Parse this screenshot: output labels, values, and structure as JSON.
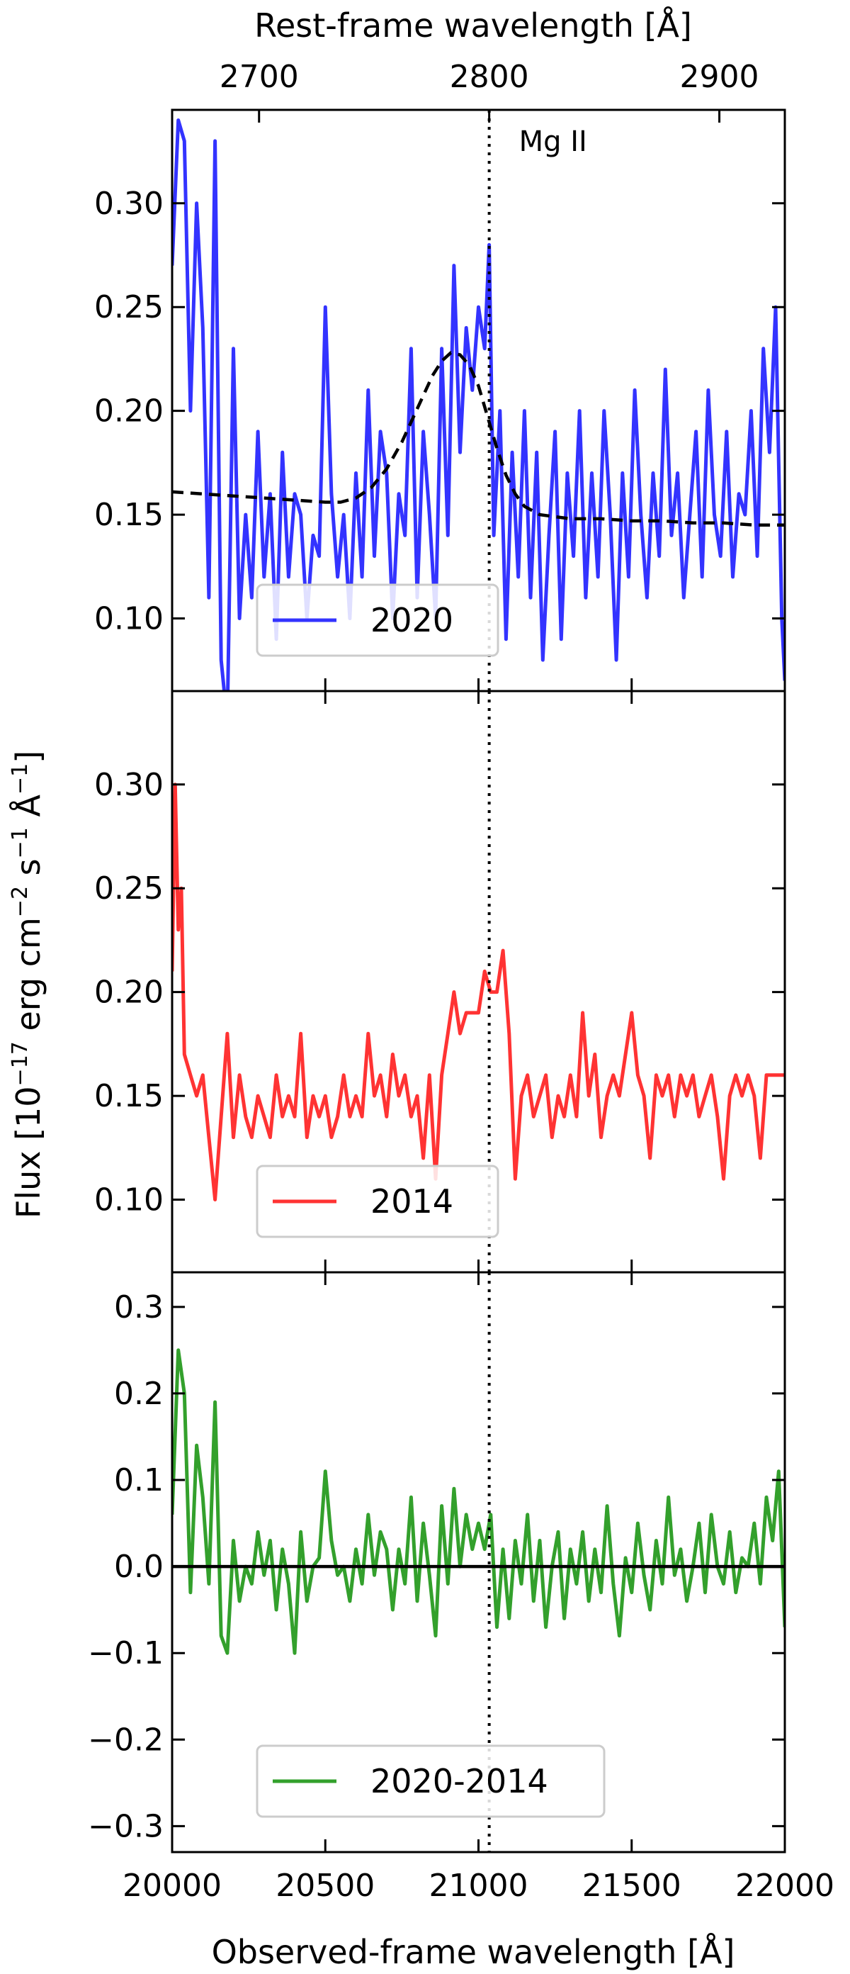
{
  "figure": {
    "top_xlabel": "Rest-frame wavelength [Å]",
    "bottom_xlabel": "Observed-frame wavelength [Å]",
    "shared_ylabel": "Flux [10^-17 erg cm^-2 s^-1 Å^-1]",
    "ylabel_parts": {
      "base": "Flux [10",
      "exp1": "−17",
      "mid1": " erg cm",
      "exp2": "−2",
      "mid2": " s",
      "exp3": "−1",
      "mid3": " Å",
      "exp4": "−1",
      "end": "]"
    },
    "annotation": "Mg II",
    "annotation_x_observed": 21035,
    "rest_ticks": [
      2700,
      2800,
      2900
    ],
    "colors": {
      "blue": "#3333ff",
      "red": "#ff3333",
      "green": "#33a02c",
      "fit": "#000000"
    }
  },
  "chart_data": [
    {
      "type": "line",
      "panel": "top",
      "xlim": [
        20000,
        22000
      ],
      "ylim": [
        0.065,
        0.345
      ],
      "yticks": [
        0.1,
        0.15,
        0.2,
        0.25,
        0.3
      ],
      "ytick_labels": [
        "0.10",
        "0.15",
        "0.20",
        "0.25",
        "0.30"
      ],
      "series": [
        {
          "name": "2020",
          "color": "#3333ff",
          "legend": true,
          "x": [
            20000,
            20020,
            20040,
            20060,
            20080,
            20100,
            20120,
            20140,
            20160,
            20180,
            20200,
            20220,
            20240,
            20260,
            20280,
            20300,
            20320,
            20340,
            20360,
            20380,
            20400,
            20420,
            20440,
            20460,
            20480,
            20500,
            20520,
            20540,
            20560,
            20580,
            20600,
            20620,
            20640,
            20660,
            20680,
            20700,
            20720,
            20740,
            20760,
            20780,
            20800,
            20820,
            20840,
            20860,
            20880,
            20900,
            20920,
            20940,
            20960,
            20980,
            21000,
            21020,
            21035,
            21050,
            21070,
            21090,
            21110,
            21130,
            21150,
            21170,
            21190,
            21210,
            21230,
            21250,
            21270,
            21290,
            21310,
            21330,
            21350,
            21370,
            21390,
            21410,
            21430,
            21450,
            21470,
            21490,
            21510,
            21530,
            21550,
            21570,
            21590,
            21610,
            21630,
            21650,
            21670,
            21690,
            21710,
            21730,
            21750,
            21770,
            21790,
            21810,
            21830,
            21850,
            21870,
            21890,
            21910,
            21930,
            21950,
            21970,
            21990,
            22000
          ],
          "y": [
            0.27,
            0.34,
            0.33,
            0.2,
            0.3,
            0.24,
            0.11,
            0.33,
            0.08,
            0.05,
            0.23,
            0.1,
            0.15,
            0.11,
            0.19,
            0.12,
            0.16,
            0.09,
            0.18,
            0.12,
            0.16,
            0.15,
            0.1,
            0.14,
            0.13,
            0.25,
            0.16,
            0.12,
            0.15,
            0.1,
            0.17,
            0.12,
            0.21,
            0.13,
            0.19,
            0.17,
            0.1,
            0.16,
            0.14,
            0.23,
            0.11,
            0.19,
            0.15,
            0.1,
            0.23,
            0.14,
            0.27,
            0.18,
            0.24,
            0.21,
            0.25,
            0.23,
            0.28,
            0.14,
            0.2,
            0.09,
            0.18,
            0.12,
            0.2,
            0.11,
            0.18,
            0.08,
            0.14,
            0.19,
            0.09,
            0.17,
            0.13,
            0.2,
            0.11,
            0.17,
            0.12,
            0.2,
            0.15,
            0.08,
            0.17,
            0.12,
            0.21,
            0.15,
            0.11,
            0.17,
            0.13,
            0.22,
            0.14,
            0.17,
            0.11,
            0.15,
            0.19,
            0.12,
            0.21,
            0.15,
            0.13,
            0.19,
            0.12,
            0.16,
            0.15,
            0.2,
            0.13,
            0.23,
            0.18,
            0.25,
            0.1,
            0.07
          ]
        },
        {
          "name": "",
          "color": "#000000",
          "style": "dashed",
          "legend": false,
          "x": [
            20000,
            20100,
            20200,
            20300,
            20400,
            20500,
            20550,
            20600,
            20650,
            20700,
            20750,
            20800,
            20850,
            20880,
            20910,
            20940,
            20970,
            21000,
            21030,
            21060,
            21090,
            21120,
            21150,
            21200,
            21250,
            21300,
            21400,
            21500,
            21600,
            21700,
            21800,
            21900,
            22000
          ],
          "y": [
            0.161,
            0.16,
            0.159,
            0.158,
            0.157,
            0.156,
            0.156,
            0.158,
            0.163,
            0.172,
            0.185,
            0.201,
            0.217,
            0.224,
            0.228,
            0.227,
            0.222,
            0.212,
            0.197,
            0.182,
            0.169,
            0.16,
            0.154,
            0.15,
            0.149,
            0.148,
            0.148,
            0.147,
            0.147,
            0.146,
            0.146,
            0.145,
            0.145
          ]
        }
      ]
    },
    {
      "type": "line",
      "panel": "middle",
      "xlim": [
        20000,
        22000
      ],
      "ylim": [
        0.065,
        0.345
      ],
      "yticks": [
        0.1,
        0.15,
        0.2,
        0.25,
        0.3
      ],
      "ytick_labels": [
        "0.10",
        "0.15",
        "0.20",
        "0.25",
        "0.30"
      ],
      "series": [
        {
          "name": "2014",
          "color": "#ff3333",
          "legend": true,
          "x": [
            20000,
            20010,
            20020,
            20030,
            20040,
            20060,
            20080,
            20100,
            20120,
            20140,
            20160,
            20180,
            20200,
            20220,
            20240,
            20260,
            20280,
            20300,
            20320,
            20340,
            20360,
            20380,
            20400,
            20420,
            20440,
            20460,
            20480,
            20500,
            20520,
            20540,
            20560,
            20580,
            20600,
            20620,
            20640,
            20660,
            20680,
            20700,
            20720,
            20740,
            20760,
            20780,
            20800,
            20820,
            20840,
            20860,
            20880,
            20900,
            20920,
            20940,
            20960,
            20980,
            21000,
            21020,
            21040,
            21060,
            21080,
            21100,
            21120,
            21140,
            21160,
            21180,
            21200,
            21220,
            21240,
            21260,
            21280,
            21300,
            21320,
            21340,
            21360,
            21380,
            21400,
            21420,
            21440,
            21460,
            21480,
            21500,
            21520,
            21540,
            21560,
            21580,
            21600,
            21620,
            21640,
            21660,
            21680,
            21700,
            21720,
            21740,
            21760,
            21780,
            21800,
            21820,
            21840,
            21860,
            21880,
            21900,
            21920,
            21940,
            21960,
            21980,
            22000
          ],
          "y": [
            0.21,
            0.3,
            0.23,
            0.25,
            0.17,
            0.16,
            0.15,
            0.16,
            0.13,
            0.1,
            0.14,
            0.18,
            0.13,
            0.16,
            0.14,
            0.13,
            0.15,
            0.14,
            0.13,
            0.16,
            0.14,
            0.15,
            0.14,
            0.18,
            0.13,
            0.15,
            0.14,
            0.15,
            0.13,
            0.14,
            0.16,
            0.14,
            0.15,
            0.14,
            0.18,
            0.15,
            0.16,
            0.14,
            0.17,
            0.15,
            0.16,
            0.14,
            0.15,
            0.12,
            0.16,
            0.11,
            0.16,
            0.18,
            0.2,
            0.18,
            0.19,
            0.19,
            0.19,
            0.21,
            0.2,
            0.2,
            0.22,
            0.18,
            0.11,
            0.15,
            0.16,
            0.14,
            0.15,
            0.16,
            0.13,
            0.15,
            0.14,
            0.16,
            0.14,
            0.19,
            0.15,
            0.17,
            0.13,
            0.15,
            0.16,
            0.15,
            0.17,
            0.19,
            0.16,
            0.15,
            0.12,
            0.16,
            0.15,
            0.16,
            0.14,
            0.16,
            0.15,
            0.16,
            0.14,
            0.15,
            0.16,
            0.14,
            0.11,
            0.15,
            0.16,
            0.15,
            0.16,
            0.15,
            0.12,
            0.16,
            0.16,
            0.16,
            0.16
          ]
        }
      ]
    },
    {
      "type": "line",
      "panel": "bottom",
      "xlim": [
        20000,
        22000
      ],
      "ylim": [
        -0.33,
        0.34
      ],
      "yticks": [
        -0.3,
        -0.2,
        -0.1,
        0.0,
        0.1,
        0.2,
        0.3
      ],
      "ytick_labels": [
        "−0.3",
        "−0.2",
        "−0.1",
        "0.0",
        "0.1",
        "0.2",
        "0.3"
      ],
      "series": [
        {
          "name": "2020-2014",
          "color": "#33a02c",
          "legend": true,
          "x": [
            20000,
            20020,
            20040,
            20060,
            20080,
            20100,
            20120,
            20140,
            20160,
            20180,
            20200,
            20220,
            20240,
            20260,
            20280,
            20300,
            20320,
            20340,
            20360,
            20380,
            20400,
            20420,
            20440,
            20460,
            20480,
            20500,
            20520,
            20540,
            20560,
            20580,
            20600,
            20620,
            20640,
            20660,
            20680,
            20700,
            20720,
            20740,
            20760,
            20780,
            20800,
            20820,
            20840,
            20860,
            20880,
            20900,
            20920,
            20940,
            20960,
            20980,
            21000,
            21020,
            21040,
            21060,
            21080,
            21100,
            21120,
            21140,
            21160,
            21180,
            21200,
            21220,
            21240,
            21260,
            21280,
            21300,
            21320,
            21340,
            21360,
            21380,
            21400,
            21420,
            21440,
            21460,
            21480,
            21500,
            21520,
            21540,
            21560,
            21580,
            21600,
            21620,
            21640,
            21660,
            21680,
            21700,
            21720,
            21740,
            21760,
            21780,
            21800,
            21820,
            21840,
            21860,
            21880,
            21900,
            21920,
            21940,
            21960,
            21980,
            22000
          ],
          "y": [
            0.06,
            0.25,
            0.2,
            -0.03,
            0.14,
            0.08,
            -0.02,
            0.19,
            -0.08,
            -0.1,
            0.03,
            -0.04,
            0.0,
            -0.02,
            0.04,
            -0.01,
            0.03,
            -0.05,
            0.02,
            -0.02,
            -0.1,
            0.04,
            -0.04,
            0.0,
            0.01,
            0.11,
            0.03,
            -0.01,
            0.0,
            -0.04,
            0.02,
            -0.02,
            0.06,
            -0.01,
            0.04,
            0.02,
            -0.05,
            0.02,
            -0.02,
            0.08,
            -0.04,
            0.05,
            -0.01,
            -0.08,
            0.07,
            -0.02,
            0.09,
            0.0,
            0.06,
            0.02,
            0.05,
            0.02,
            0.06,
            -0.07,
            0.02,
            -0.06,
            0.03,
            -0.02,
            0.06,
            -0.04,
            0.03,
            -0.07,
            0.0,
            0.04,
            -0.06,
            0.02,
            -0.02,
            0.04,
            -0.04,
            0.02,
            -0.03,
            0.07,
            -0.02,
            -0.08,
            0.01,
            -0.03,
            0.05,
            -0.01,
            -0.05,
            0.03,
            -0.02,
            0.08,
            -0.01,
            0.02,
            -0.04,
            0.0,
            0.05,
            -0.03,
            0.06,
            0.0,
            -0.02,
            0.04,
            -0.03,
            0.01,
            0.0,
            0.05,
            -0.02,
            0.08,
            0.03,
            0.11,
            -0.07
          ]
        },
        {
          "name": "",
          "color": "#000000",
          "style": "zero-line",
          "legend": false,
          "x": [
            20000,
            22000
          ],
          "y": [
            0,
            0
          ]
        }
      ]
    }
  ],
  "xticks": [
    20000,
    20500,
    21000,
    21500,
    22000
  ],
  "xtick_labels": [
    "20000",
    "20500",
    "21000",
    "21500",
    "22000"
  ]
}
